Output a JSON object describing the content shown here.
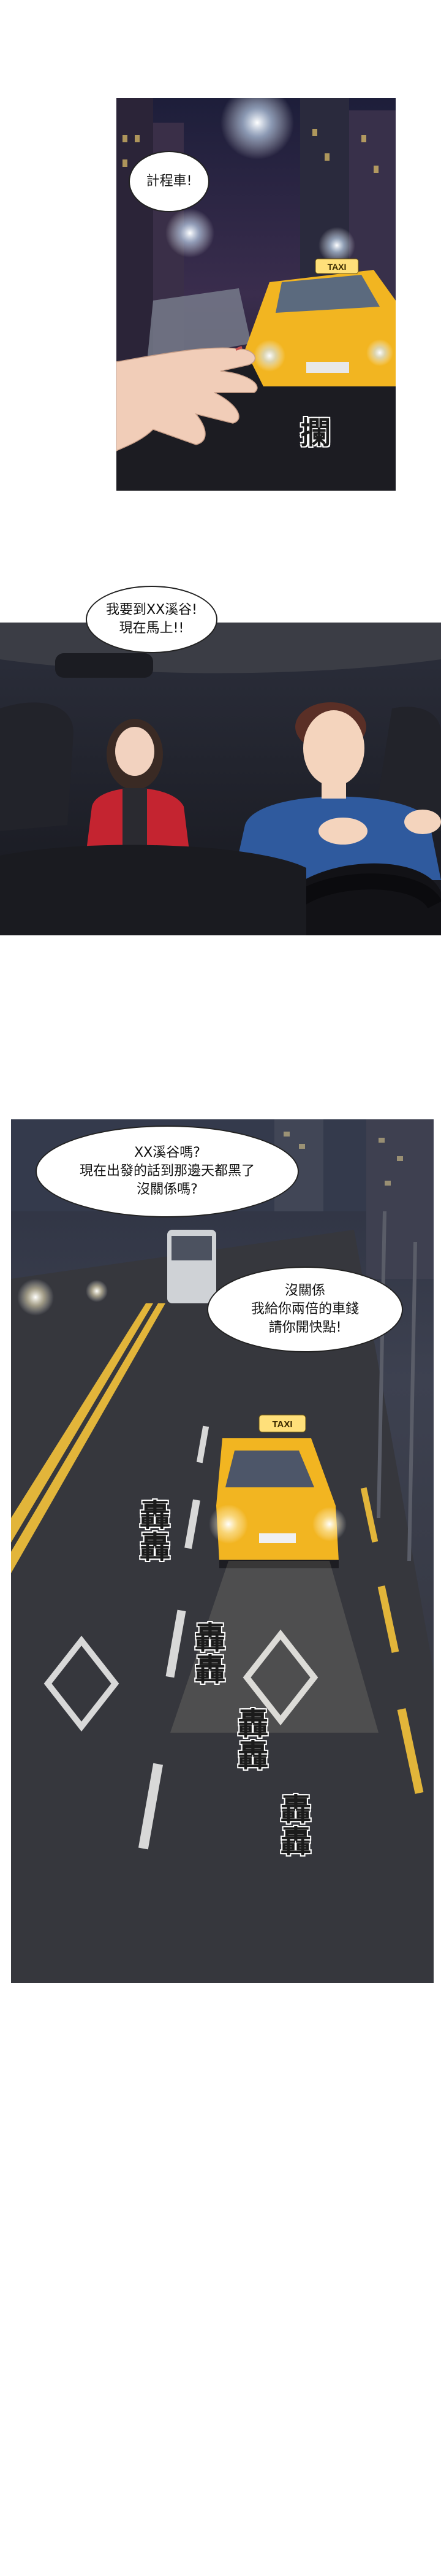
{
  "panel1": {
    "speech": "計程車!",
    "sfx": "攔",
    "taxi_sign": "TAXI"
  },
  "panel2": {
    "speech": "我要到XX溪谷!\n現在馬上!!"
  },
  "panel3": {
    "speech_driver": "XX溪谷嗎?\n現在出發的話到那邊天都黑了\n沒關係嗎?",
    "speech_woman": "沒關係\n我給你兩倍的車錢\n請你開快點!",
    "taxi_sign": "TAXI",
    "sfx": [
      "轟\n轟",
      "轟\n轟",
      "轟\n轟",
      "轟\n轟"
    ]
  },
  "colors": {
    "taxi_yellow": "#f2b521",
    "night_blue": "#2a2f55",
    "road": "#3a3b40"
  }
}
